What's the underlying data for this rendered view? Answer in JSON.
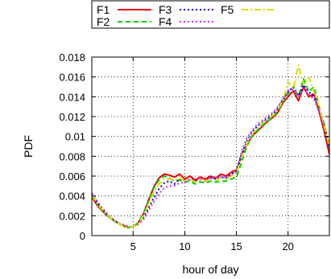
{
  "chart_data": {
    "type": "line",
    "title": "",
    "xlabel": "hour of day",
    "ylabel": "PDF",
    "xlim": [
      1,
      24
    ],
    "ylim": [
      0,
      0.018
    ],
    "x_ticks": [
      5,
      10,
      15,
      20
    ],
    "y_ticks": [
      0,
      0.002,
      0.004,
      0.006,
      0.008,
      0.01,
      0.012,
      0.014,
      0.016,
      0.018
    ],
    "y_tick_labels": [
      "0",
      "0.002",
      "0.004",
      "0.006",
      "0.008",
      "0.01",
      "0.012",
      "0.014",
      "0.016",
      "0.018"
    ],
    "grid": true,
    "legend_position": "top",
    "series": [
      {
        "name": "F1",
        "color": "#ee0000",
        "dash": "solid",
        "points": [
          [
            1,
            0.0039
          ],
          [
            1.5,
            0.0031
          ],
          [
            2,
            0.0025
          ],
          [
            2.5,
            0.002
          ],
          [
            3,
            0.0016
          ],
          [
            3.5,
            0.0013
          ],
          [
            4,
            0.001
          ],
          [
            4.5,
            0.0008
          ],
          [
            5,
            0.0009
          ],
          [
            5.5,
            0.0013
          ],
          [
            6,
            0.0022
          ],
          [
            6.5,
            0.0036
          ],
          [
            7,
            0.0049
          ],
          [
            7.5,
            0.0058
          ],
          [
            8,
            0.0062
          ],
          [
            8.5,
            0.0061
          ],
          [
            9,
            0.0059
          ],
          [
            9.5,
            0.0062
          ],
          [
            10,
            0.0057
          ],
          [
            10.5,
            0.006
          ],
          [
            11,
            0.0056
          ],
          [
            11.5,
            0.0059
          ],
          [
            12,
            0.0057
          ],
          [
            12.5,
            0.006
          ],
          [
            13,
            0.0058
          ],
          [
            13.5,
            0.0062
          ],
          [
            14,
            0.006
          ],
          [
            14.5,
            0.0064
          ],
          [
            15,
            0.0066
          ],
          [
            15.5,
            0.008
          ],
          [
            16,
            0.0092
          ],
          [
            16.5,
            0.01
          ],
          [
            17,
            0.0105
          ],
          [
            17.5,
            0.011
          ],
          [
            18,
            0.0115
          ],
          [
            18.5,
            0.0119
          ],
          [
            19,
            0.0124
          ],
          [
            19.5,
            0.0134
          ],
          [
            20,
            0.014
          ],
          [
            20.5,
            0.0146
          ],
          [
            21,
            0.0136
          ],
          [
            21.5,
            0.015
          ],
          [
            22,
            0.014
          ],
          [
            22.5,
            0.0143
          ],
          [
            23,
            0.0125
          ],
          [
            23.5,
            0.0105
          ],
          [
            24,
            0.0082
          ]
        ]
      },
      {
        "name": "F2",
        "color": "#00cc00",
        "dash": "dashed",
        "points": [
          [
            1,
            0.004
          ],
          [
            1.5,
            0.0032
          ],
          [
            2,
            0.0026
          ],
          [
            2.5,
            0.002
          ],
          [
            3,
            0.0016
          ],
          [
            3.5,
            0.0012
          ],
          [
            4,
            0.001
          ],
          [
            4.5,
            0.0008
          ],
          [
            5,
            0.0009
          ],
          [
            5.5,
            0.0013
          ],
          [
            6,
            0.0022
          ],
          [
            6.5,
            0.0035
          ],
          [
            7,
            0.0048
          ],
          [
            7.5,
            0.0056
          ],
          [
            8,
            0.006
          ],
          [
            8.5,
            0.0058
          ],
          [
            9,
            0.0055
          ],
          [
            9.5,
            0.0056
          ],
          [
            10,
            0.0054
          ],
          [
            10.5,
            0.0055
          ],
          [
            11,
            0.0052
          ],
          [
            11.5,
            0.0054
          ],
          [
            12,
            0.0053
          ],
          [
            12.5,
            0.0055
          ],
          [
            13,
            0.0054
          ],
          [
            13.5,
            0.0055
          ],
          [
            14,
            0.0055
          ],
          [
            14.5,
            0.0057
          ],
          [
            15,
            0.0059
          ],
          [
            15.5,
            0.0074
          ],
          [
            16,
            0.009
          ],
          [
            16.5,
            0.01
          ],
          [
            17,
            0.0106
          ],
          [
            17.5,
            0.0111
          ],
          [
            18,
            0.0115
          ],
          [
            18.5,
            0.012
          ],
          [
            19,
            0.0125
          ],
          [
            19.5,
            0.0135
          ],
          [
            20,
            0.0143
          ],
          [
            20.5,
            0.015
          ],
          [
            21,
            0.014
          ],
          [
            21.5,
            0.0158
          ],
          [
            22,
            0.0145
          ],
          [
            22.5,
            0.015
          ],
          [
            23,
            0.013
          ],
          [
            23.5,
            0.0112
          ],
          [
            24,
            0.0088
          ]
        ]
      },
      {
        "name": "F3",
        "color": "#0000ee",
        "dash": "dotted",
        "points": [
          [
            1,
            0.0042
          ],
          [
            1.5,
            0.0034
          ],
          [
            2,
            0.0027
          ],
          [
            2.5,
            0.0021
          ],
          [
            3,
            0.0017
          ],
          [
            3.5,
            0.0013
          ],
          [
            4,
            0.0011
          ],
          [
            4.5,
            0.0009
          ],
          [
            5,
            0.0009
          ],
          [
            5.5,
            0.0012
          ],
          [
            6,
            0.0018
          ],
          [
            6.5,
            0.0028
          ],
          [
            7,
            0.0038
          ],
          [
            7.5,
            0.0047
          ],
          [
            8,
            0.0053
          ],
          [
            8.5,
            0.0055
          ],
          [
            9,
            0.0052
          ],
          [
            9.5,
            0.0057
          ],
          [
            10,
            0.0055
          ],
          [
            10.5,
            0.0057
          ],
          [
            11,
            0.0055
          ],
          [
            11.5,
            0.0056
          ],
          [
            12,
            0.0055
          ],
          [
            12.5,
            0.0058
          ],
          [
            13,
            0.0057
          ],
          [
            13.5,
            0.0059
          ],
          [
            14,
            0.0058
          ],
          [
            14.5,
            0.0062
          ],
          [
            15,
            0.0065
          ],
          [
            15.5,
            0.0082
          ],
          [
            16,
            0.0095
          ],
          [
            16.5,
            0.0104
          ],
          [
            17,
            0.011
          ],
          [
            17.5,
            0.0114
          ],
          [
            18,
            0.0118
          ],
          [
            18.5,
            0.0122
          ],
          [
            19,
            0.0128
          ],
          [
            19.5,
            0.0137
          ],
          [
            20,
            0.0145
          ],
          [
            20.5,
            0.015
          ],
          [
            21,
            0.0141
          ],
          [
            21.5,
            0.0152
          ],
          [
            22,
            0.0145
          ],
          [
            22.5,
            0.014
          ],
          [
            23,
            0.0128
          ],
          [
            23.5,
            0.0112
          ],
          [
            24,
            0.009
          ]
        ]
      },
      {
        "name": "F4",
        "color": "#cc33ee",
        "dash": "dotted",
        "points": [
          [
            1,
            0.0043
          ],
          [
            1.5,
            0.0035
          ],
          [
            2,
            0.0028
          ],
          [
            2.5,
            0.0022
          ],
          [
            3,
            0.0017
          ],
          [
            3.5,
            0.0013
          ],
          [
            4,
            0.0011
          ],
          [
            4.5,
            0.0009
          ],
          [
            5,
            0.0009
          ],
          [
            5.5,
            0.0011
          ],
          [
            6,
            0.0016
          ],
          [
            6.5,
            0.0025
          ],
          [
            7,
            0.0034
          ],
          [
            7.5,
            0.0042
          ],
          [
            8,
            0.0048
          ],
          [
            8.5,
            0.005
          ],
          [
            9,
            0.005
          ],
          [
            9.5,
            0.0053
          ],
          [
            10,
            0.0054
          ],
          [
            10.5,
            0.0056
          ],
          [
            11,
            0.0055
          ],
          [
            11.5,
            0.0057
          ],
          [
            12,
            0.0056
          ],
          [
            12.5,
            0.0058
          ],
          [
            13,
            0.0058
          ],
          [
            13.5,
            0.006
          ],
          [
            14,
            0.0059
          ],
          [
            14.5,
            0.0061
          ],
          [
            15,
            0.0064
          ],
          [
            15.5,
            0.0085
          ],
          [
            16,
            0.0098
          ],
          [
            16.5,
            0.0106
          ],
          [
            17,
            0.0112
          ],
          [
            17.5,
            0.0116
          ],
          [
            18,
            0.012
          ],
          [
            18.5,
            0.0124
          ],
          [
            19,
            0.013
          ],
          [
            19.5,
            0.0138
          ],
          [
            20,
            0.0146
          ],
          [
            20.5,
            0.0148
          ],
          [
            21,
            0.014
          ],
          [
            21.5,
            0.0148
          ],
          [
            22,
            0.0142
          ],
          [
            22.5,
            0.0138
          ],
          [
            23,
            0.0125
          ],
          [
            23.5,
            0.011
          ],
          [
            24,
            0.0088
          ]
        ]
      },
      {
        "name": "F5",
        "color": "#dddd00",
        "dash": "dashdot",
        "points": [
          [
            1,
            0.0041
          ],
          [
            1.5,
            0.0033
          ],
          [
            2,
            0.0026
          ],
          [
            2.5,
            0.0021
          ],
          [
            3,
            0.0016
          ],
          [
            3.5,
            0.0013
          ],
          [
            4,
            0.001
          ],
          [
            4.5,
            0.0008
          ],
          [
            5,
            0.0009
          ],
          [
            5.5,
            0.0012
          ],
          [
            6,
            0.002
          ],
          [
            6.5,
            0.0032
          ],
          [
            7,
            0.0044
          ],
          [
            7.5,
            0.0052
          ],
          [
            8,
            0.0057
          ],
          [
            8.5,
            0.0057
          ],
          [
            9,
            0.0056
          ],
          [
            9.5,
            0.0058
          ],
          [
            10,
            0.0055
          ],
          [
            10.5,
            0.0057
          ],
          [
            11,
            0.0054
          ],
          [
            11.5,
            0.0056
          ],
          [
            12,
            0.0055
          ],
          [
            12.5,
            0.0057
          ],
          [
            13,
            0.0056
          ],
          [
            13.5,
            0.0058
          ],
          [
            14,
            0.0057
          ],
          [
            14.5,
            0.006
          ],
          [
            15,
            0.0063
          ],
          [
            15.5,
            0.0079
          ],
          [
            16,
            0.0093
          ],
          [
            16.5,
            0.0102
          ],
          [
            17,
            0.0108
          ],
          [
            17.5,
            0.0113
          ],
          [
            18,
            0.0117
          ],
          [
            18.5,
            0.0121
          ],
          [
            19,
            0.0127
          ],
          [
            19.5,
            0.0136
          ],
          [
            20,
            0.0155
          ],
          [
            20.5,
            0.0148
          ],
          [
            21,
            0.0172
          ],
          [
            21.5,
            0.0152
          ],
          [
            22,
            0.016
          ],
          [
            22.5,
            0.0145
          ],
          [
            23,
            0.013
          ],
          [
            23.5,
            0.011
          ],
          [
            24,
            0.009
          ]
        ]
      }
    ]
  }
}
